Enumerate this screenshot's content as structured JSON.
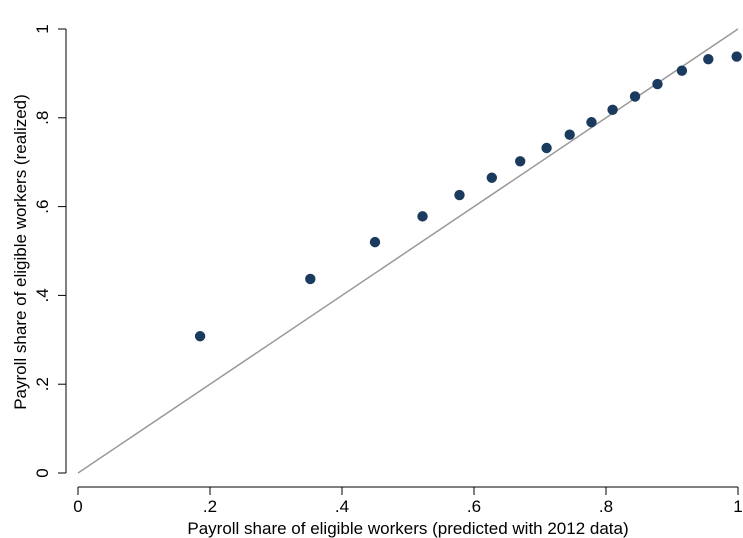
{
  "chart_data": {
    "type": "scatter",
    "title": "",
    "xlabel": "Payroll share of eligible workers (predicted with 2012 data)",
    "ylabel": "Payroll share of eligible workers (realized)",
    "xlim": [
      0,
      1
    ],
    "ylim": [
      0,
      1
    ],
    "xticks": [
      0,
      0.2,
      0.4,
      0.6,
      0.8,
      1
    ],
    "xtick_labels": [
      "0",
      ".2",
      ".4",
      ".6",
      ".8",
      "1"
    ],
    "yticks": [
      0,
      0.2,
      0.4,
      0.6,
      0.8,
      1
    ],
    "ytick_labels": [
      "0",
      ".2",
      ".4",
      ".6",
      ".8",
      "1"
    ],
    "grid": false,
    "reference_line": {
      "x": [
        0,
        1
      ],
      "y": [
        0,
        1
      ],
      "color": "#999999"
    },
    "marker_color": "#1a3a5e",
    "points": [
      {
        "x": 0.185,
        "y": 0.308
      },
      {
        "x": 0.352,
        "y": 0.437
      },
      {
        "x": 0.45,
        "y": 0.52
      },
      {
        "x": 0.522,
        "y": 0.578
      },
      {
        "x": 0.578,
        "y": 0.626
      },
      {
        "x": 0.627,
        "y": 0.665
      },
      {
        "x": 0.67,
        "y": 0.702
      },
      {
        "x": 0.71,
        "y": 0.732
      },
      {
        "x": 0.745,
        "y": 0.762
      },
      {
        "x": 0.778,
        "y": 0.79
      },
      {
        "x": 0.81,
        "y": 0.818
      },
      {
        "x": 0.844,
        "y": 0.848
      },
      {
        "x": 0.878,
        "y": 0.876
      },
      {
        "x": 0.915,
        "y": 0.906
      },
      {
        "x": 0.955,
        "y": 0.932
      },
      {
        "x": 0.998,
        "y": 0.938
      }
    ]
  }
}
